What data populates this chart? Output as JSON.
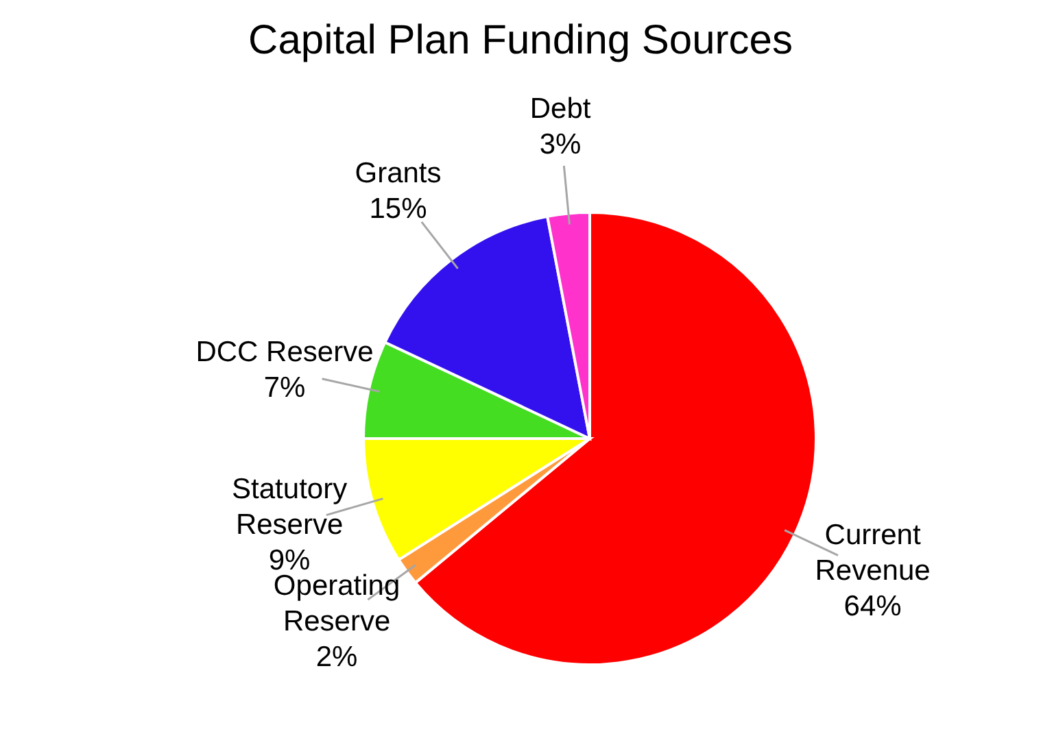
{
  "chart_data": {
    "type": "pie",
    "title": "Capital Plan Funding Sources",
    "categories": [
      "Current Revenue",
      "Operating Reserve",
      "Statutory Reserve",
      "DCC Reserve",
      "Grants",
      "Debt"
    ],
    "values": [
      64,
      2,
      9,
      7,
      15,
      3
    ],
    "value_labels": [
      "64%",
      "2%",
      "9%",
      "7%",
      "15%",
      "3%"
    ],
    "colors": [
      "#ff0000",
      "#ff9a3c",
      "#ffff00",
      "#44dd22",
      "#3311ee",
      "#ff33cc"
    ]
  }
}
